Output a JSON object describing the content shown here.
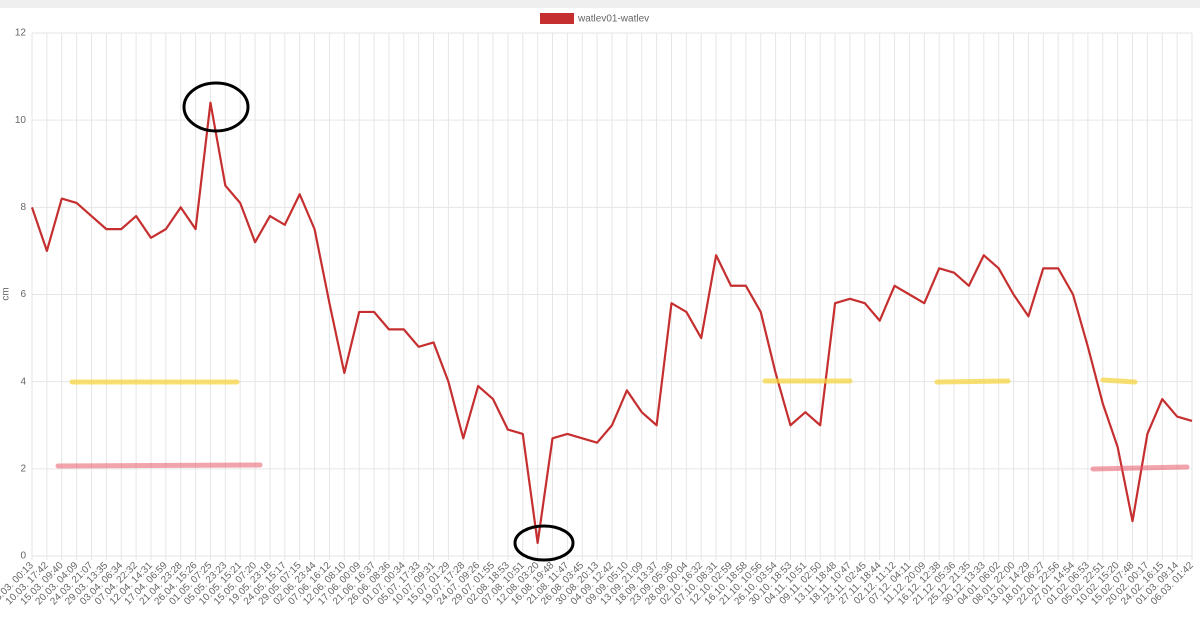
{
  "chart_data": {
    "type": "line",
    "y_label": "cm",
    "categories": [
      "05.03. 00:13",
      "10.03. 17:42",
      "15.03. 09:40",
      "20.03. 04:09",
      "24.03. 21:07",
      "29.03. 13:35",
      "03.04. 06:34",
      "07.04. 22:32",
      "12.04. 14:31",
      "17.04. 06:59",
      "21.04. 23:28",
      "26.04. 15:26",
      "01.05. 07:25",
      "05.05. 23:23",
      "10.05. 15:21",
      "15.05. 07:20",
      "19.05. 23:18",
      "24.05. 15:17",
      "29.05. 07:15",
      "02.06. 23:44",
      "07.06. 16:12",
      "12.06. 08:10",
      "17.06. 00:09",
      "21.06. 16:37",
      "26.06. 08:36",
      "01.07. 00:34",
      "05.07. 17:33",
      "10.07. 09:31",
      "15.07. 01:29",
      "19.07. 17:28",
      "24.07. 09:26",
      "29.07. 01:55",
      "02.08. 18:53",
      "07.08. 10:51",
      "12.08. 03:20",
      "16.08. 19:48",
      "21.08. 11:47",
      "26.08. 03:45",
      "30.08. 20:13",
      "04.09. 12:42",
      "09.09. 05:10",
      "13.09. 21:09",
      "18.09. 13:37",
      "23.09. 05:36",
      "28.09. 00:04",
      "02.10. 16:32",
      "07.10. 08:31",
      "12.10. 02:59",
      "16.10. 18:58",
      "21.10. 10:56",
      "26.10. 03:54",
      "30.10. 18:53",
      "04.11. 10:51",
      "09.11. 02:50",
      "13.11. 18:48",
      "18.11. 10:47",
      "23.11. 02:45",
      "27.11. 18:44",
      "02.12. 11:12",
      "07.12. 04:11",
      "11.12. 20:09",
      "16.12. 12:38",
      "21.12. 05:36",
      "25.12. 21:35",
      "30.12. 13:33",
      "04.01. 06:02",
      "08.01. 22:00",
      "13.01. 14:29",
      "18.01. 06:27",
      "22.01. 22:56",
      "27.01. 14:54",
      "01.02. 06:53",
      "05.02. 22:51",
      "10.02. 15:20",
      "15.02. 07:48",
      "20.02. 00:17",
      "24.02. 16:15",
      "01.03. 09:14",
      "06.03. 01:42"
    ],
    "series": [
      {
        "name": "watlev01-watlev",
        "color": "#c62f2f",
        "values": [
          8.0,
          7.0,
          8.2,
          8.1,
          7.8,
          7.5,
          7.5,
          7.8,
          7.3,
          7.5,
          8.0,
          7.5,
          10.4,
          8.5,
          8.1,
          7.2,
          7.8,
          7.6,
          8.3,
          7.5,
          5.8,
          4.2,
          5.6,
          5.6,
          5.2,
          5.2,
          4.8,
          4.9,
          4.0,
          2.7,
          3.9,
          3.6,
          2.9,
          2.8,
          0.3,
          2.7,
          2.8,
          2.7,
          2.6,
          3.0,
          3.8,
          3.3,
          3.0,
          5.8,
          5.6,
          5.0,
          6.9,
          6.2,
          6.2,
          5.6,
          4.2,
          3.0,
          3.3,
          3.0,
          5.8,
          5.9,
          5.8,
          5.4,
          6.2,
          6.0,
          5.8,
          6.6,
          6.5,
          6.2,
          6.9,
          6.6,
          6.0,
          5.5,
          6.6,
          6.6,
          6.0,
          4.8,
          3.5,
          2.5,
          0.8,
          2.8,
          3.6,
          3.2,
          3.1
        ]
      }
    ],
    "ylim": [
      0,
      12
    ],
    "yticks": [
      0,
      2,
      4,
      6,
      8,
      10,
      12
    ],
    "grid": true,
    "legend": "top"
  }
}
